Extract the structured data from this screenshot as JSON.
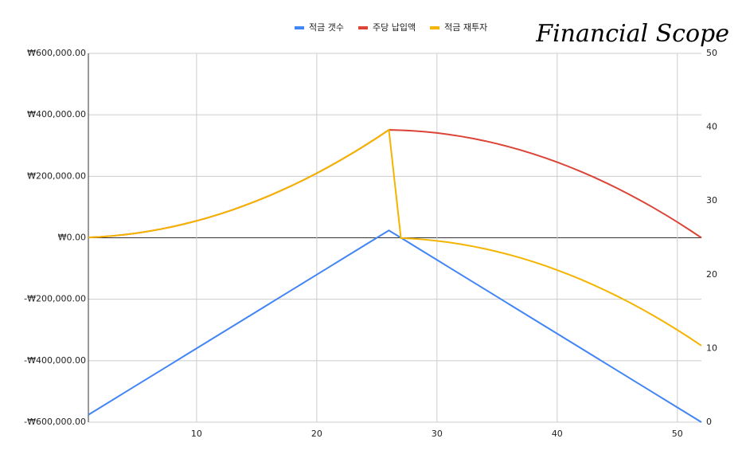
{
  "brand": "Financial Scope",
  "chart_data": {
    "type": "line",
    "x": [
      1,
      2,
      3,
      4,
      5,
      6,
      7,
      8,
      9,
      10,
      11,
      12,
      13,
      14,
      15,
      16,
      17,
      18,
      19,
      20,
      21,
      22,
      23,
      24,
      25,
      26,
      27,
      28,
      29,
      30,
      31,
      32,
      33,
      34,
      35,
      36,
      37,
      38,
      39,
      40,
      41,
      42,
      43,
      44,
      45,
      46,
      47,
      48,
      49,
      50,
      51,
      52
    ],
    "xlim": [
      1,
      52
    ],
    "xticks": [
      10,
      20,
      30,
      40,
      50
    ],
    "ylim": [
      -600000,
      600000
    ],
    "yticks": [
      {
        "value": -600000,
        "label": "-₩600,000.00"
      },
      {
        "value": -400000,
        "label": "-₩400,000.00"
      },
      {
        "value": -200000,
        "label": "-₩200,000.00"
      },
      {
        "value": 0,
        "label": "₩0.00"
      },
      {
        "value": 200000,
        "label": "₩200,000.00"
      },
      {
        "value": 400000,
        "label": "₩400,000.00"
      },
      {
        "value": 600000,
        "label": "₩600,000.00"
      }
    ],
    "y2lim": [
      0,
      50
    ],
    "y2ticks": [
      0,
      10,
      20,
      30,
      40,
      50
    ],
    "grid": true,
    "series": [
      {
        "name": "적금 갯수",
        "color": "#4285f4",
        "axis": "y2",
        "values": [
          1,
          2,
          3,
          4,
          5,
          6,
          7,
          8,
          9,
          10,
          11,
          12,
          13,
          14,
          15,
          16,
          17,
          18,
          19,
          20,
          21,
          22,
          23,
          24,
          25,
          26,
          25,
          24,
          23,
          22,
          21,
          20,
          19,
          18,
          17,
          16,
          15,
          14,
          13,
          12,
          11,
          10,
          9,
          8,
          7,
          6,
          5,
          4,
          3,
          2,
          1,
          0
        ]
      },
      {
        "name": "주당 납입액",
        "color": "#db4437",
        "values": [
          1000,
          3000,
          6000,
          10000,
          15000,
          21000,
          28000,
          36000,
          45000,
          55000,
          66000,
          78000,
          91000,
          105000,
          120000,
          136000,
          153000,
          171000,
          190000,
          210000,
          231000,
          253000,
          276000,
          300000,
          325000,
          351000,
          350000,
          348000,
          345000,
          341000,
          336000,
          330000,
          323000,
          315000,
          306000,
          296000,
          285000,
          273000,
          260000,
          246000,
          231000,
          215000,
          198000,
          180000,
          161000,
          141000,
          120000,
          98000,
          75000,
          51000,
          26000,
          0
        ]
      },
      {
        "name": "적금 재투자",
        "color": "#f4b400",
        "values": [
          1000,
          3000,
          6000,
          10000,
          15000,
          21000,
          28000,
          36000,
          45000,
          55000,
          66000,
          78000,
          91000,
          105000,
          120000,
          136000,
          153000,
          171000,
          190000,
          210000,
          231000,
          253000,
          276000,
          300000,
          325000,
          351000,
          -1000,
          -3000,
          -6000,
          -10000,
          -15000,
          -21000,
          -28000,
          -36000,
          -45000,
          -55000,
          -66000,
          -78000,
          -91000,
          -105000,
          -120000,
          -136000,
          -153000,
          -171000,
          -190000,
          -210000,
          -231000,
          -253000,
          -276000,
          -300000,
          -325000,
          -351000
        ]
      }
    ]
  }
}
